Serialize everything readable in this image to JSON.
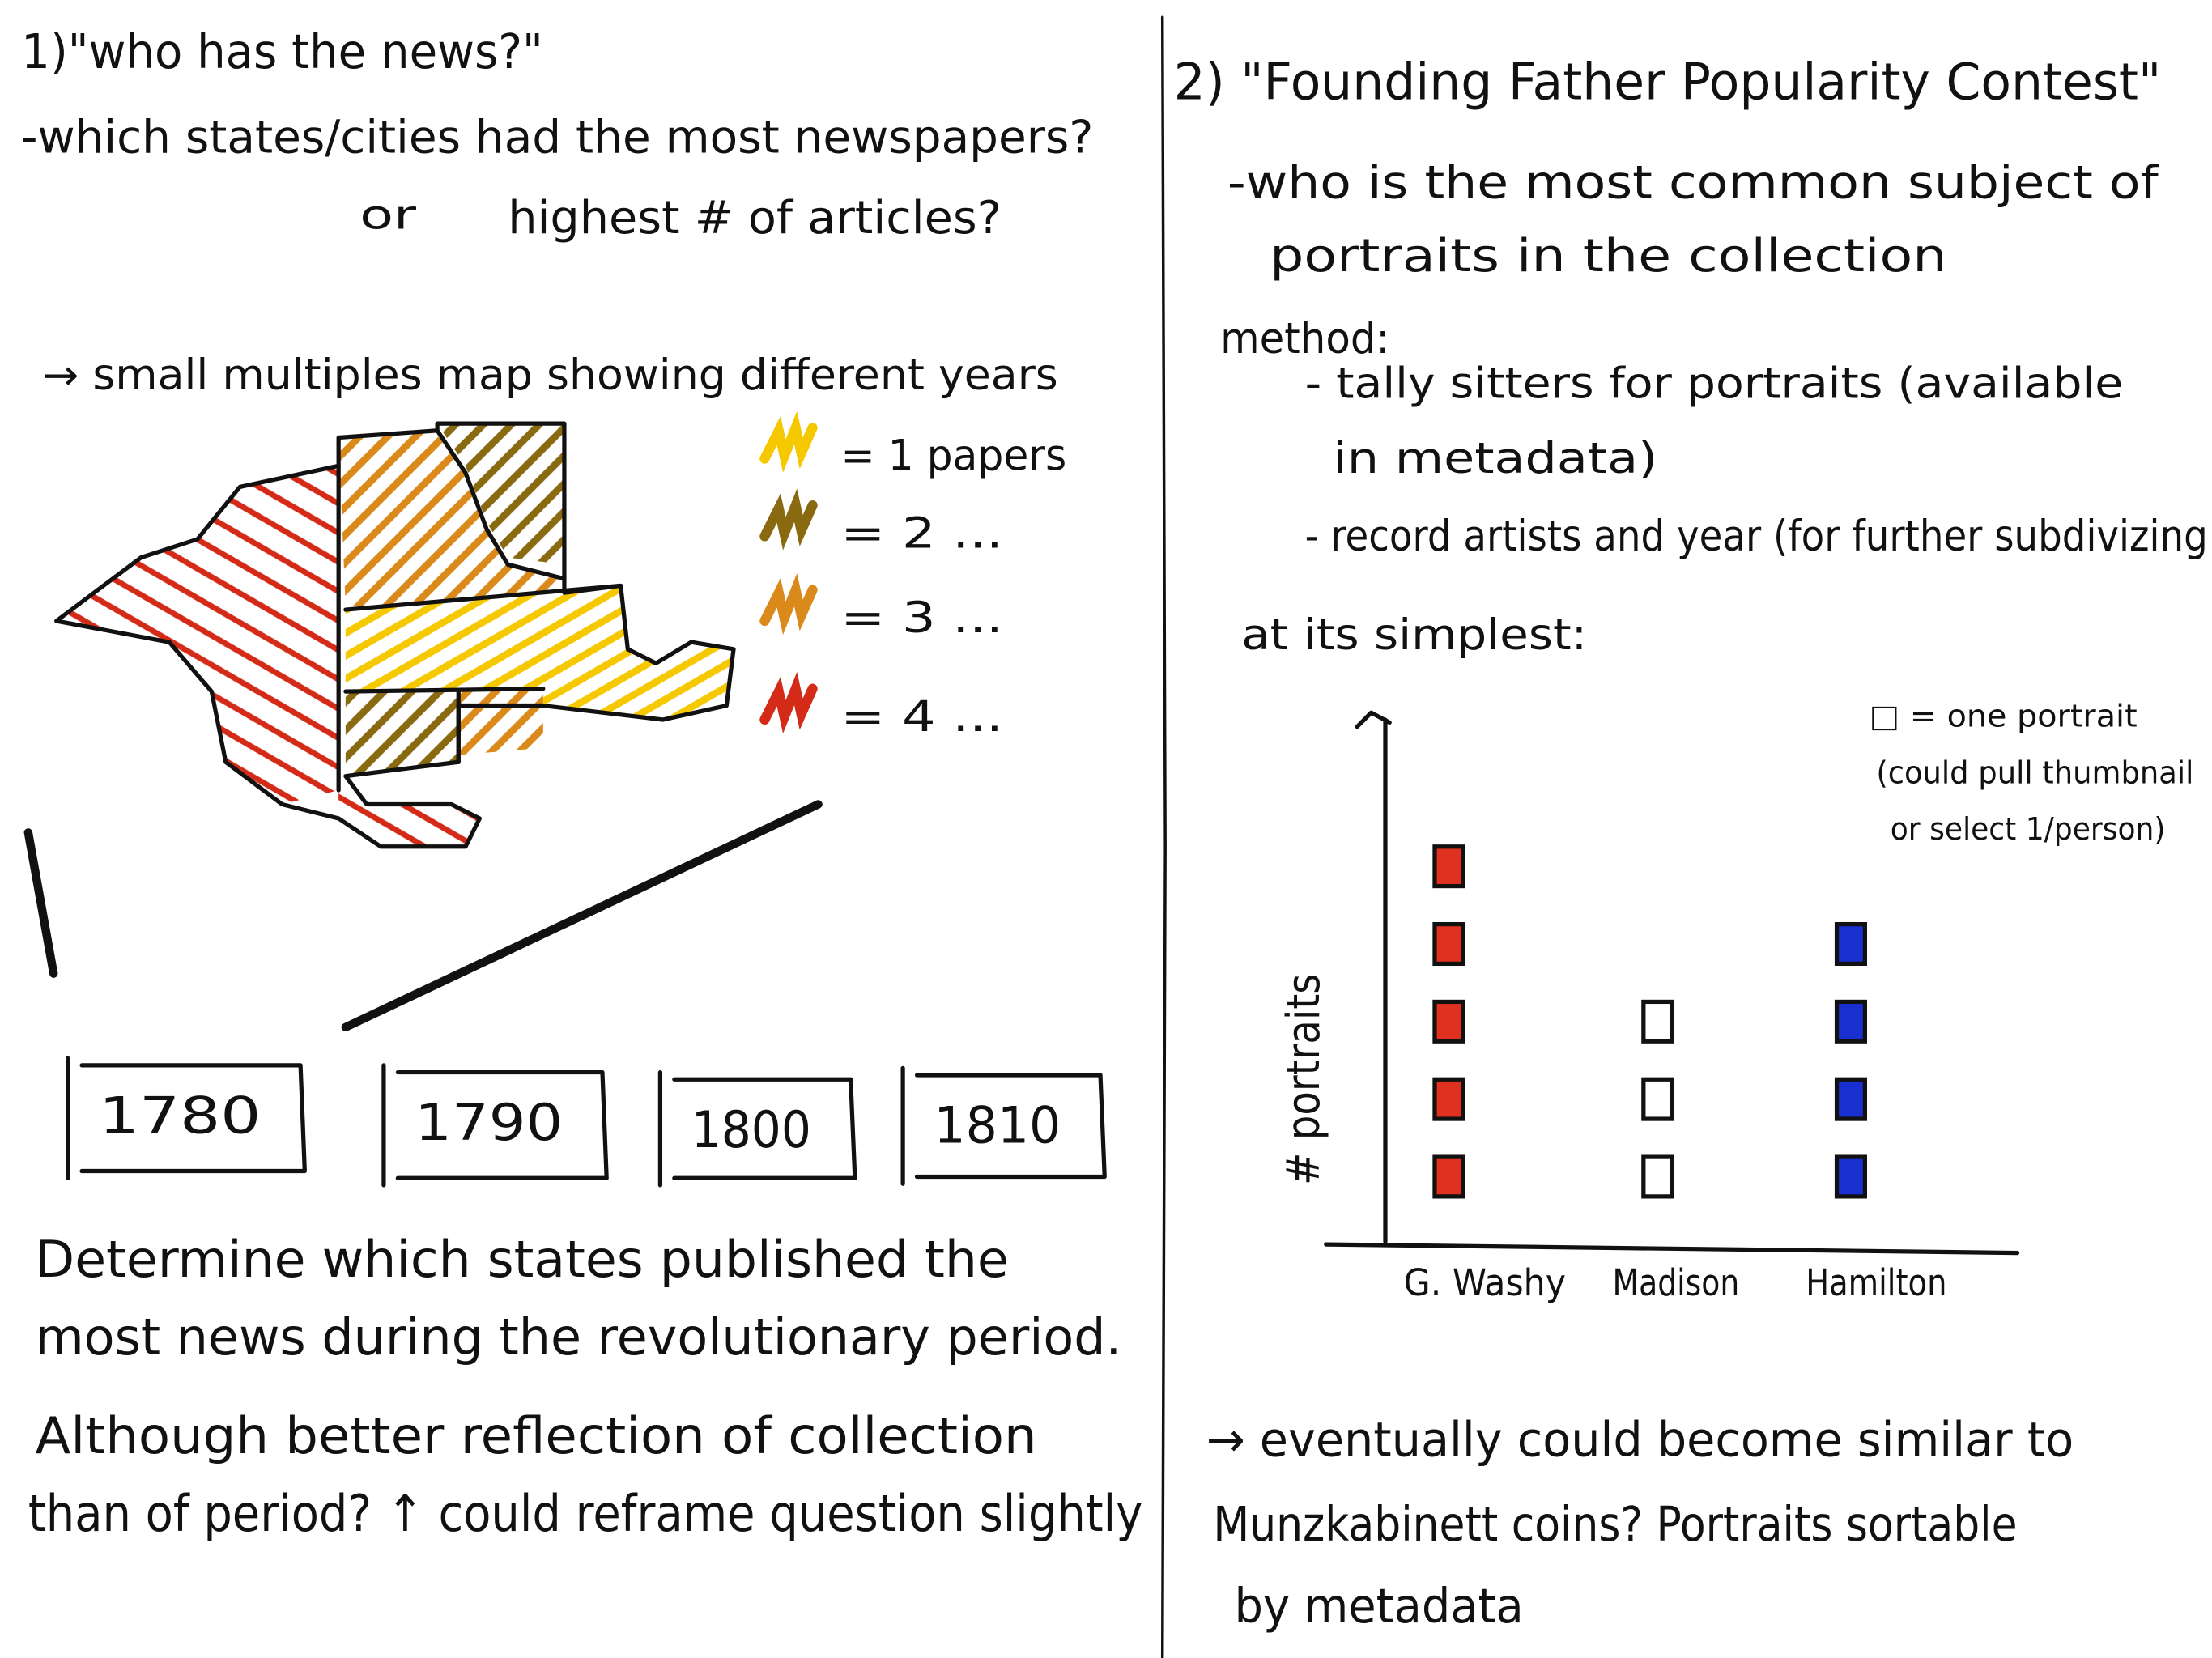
{
  "left": {
    "title": "1)\"who has the news?\"",
    "question": "-which states/cities had the most newspapers?",
    "or": "or",
    "alt_question": "highest # of articles?",
    "idea": "→ small multiples map showing different years",
    "legend": [
      {
        "label": "= 1 papers",
        "color": "#f5c800"
      },
      {
        "label": "= 2 ...",
        "color": "#8a6a10"
      },
      {
        "label": "= 3 ...",
        "color": "#d98a1a"
      },
      {
        "label": "= 4 ...",
        "color": "#d42a18"
      }
    ],
    "years": [
      "1780",
      "1790",
      "1800",
      "1810"
    ],
    "paragraph": [
      "Determine which states published the",
      "most news during the revolutionary period.",
      "Although better reflection of collection",
      "than of period? ↑ could reframe question slightly"
    ]
  },
  "right": {
    "title": "2) \"Founding Father Popularity Contest\"",
    "question": [
      "-who is the most common subject of",
      "portraits in the collection"
    ],
    "method": "method:",
    "steps": [
      "- tally sitters for portraits (available",
      "in metadata)",
      "- record artists and year (for further subdivizing"
    ],
    "simplest": "at its simplest:",
    "chart": {
      "key": [
        "□ = one portrait",
        "(could pull thumbnail",
        "or select 1/person)"
      ],
      "y_label": "# portraits",
      "categories": [
        "G. Washy",
        "Madison",
        "Hamilton"
      ],
      "counts": [
        5,
        3,
        4
      ],
      "colors": [
        "#e03020",
        "#ffffff",
        "#1a2fd0"
      ]
    },
    "closing": [
      "→ eventually could become similar to",
      "Munzkabinett coins? Portraits sortable",
      "by metadata"
    ]
  }
}
